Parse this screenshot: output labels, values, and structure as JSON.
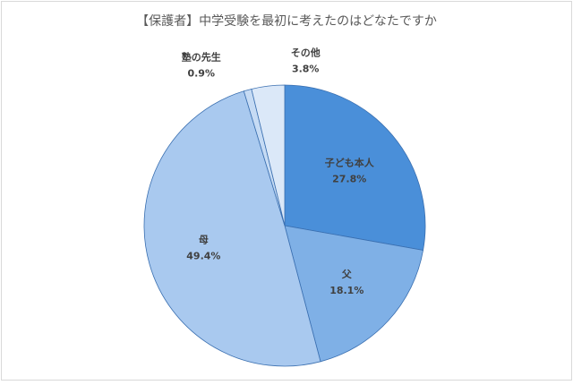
{
  "chart_data": {
    "type": "pie",
    "title": "【保護者】中学受験を最初に考えたのはどなたですか",
    "categories": [
      "子ども本人",
      "父",
      "母",
      "塾の先生",
      "その他"
    ],
    "values": [
      27.8,
      18.1,
      49.4,
      0.9,
      3.8
    ],
    "value_labels": [
      "27.8%",
      "18.1%",
      "49.4%",
      "0.9%",
      "3.8%"
    ],
    "colors": [
      "#4a8fd9",
      "#7fb0e6",
      "#a9c9ef",
      "#c6dbf4",
      "#dbe8f8"
    ]
  }
}
